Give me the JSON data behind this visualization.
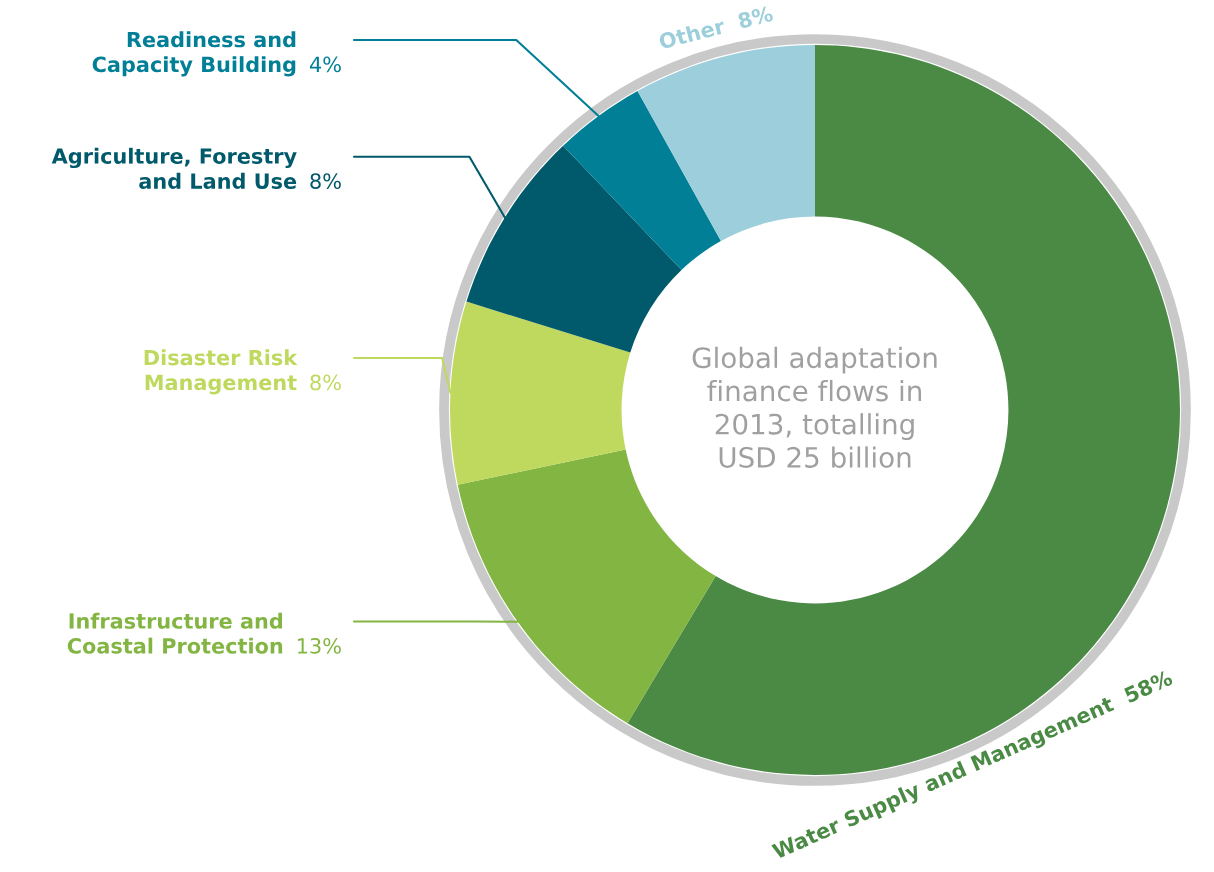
{
  "chart_data": {
    "type": "donut",
    "title": "Global adaptation\nfinance flows in\n2013, totalling\nUSD 25 billion",
    "categories": [
      "Water Supply and Management",
      "Infrastructure and\nCoastal Protection",
      "Disaster Risk\nManagement",
      "Agriculture, Forestry\nand Land Use",
      "Readiness and\nCapacity Building",
      "Other"
    ],
    "values": [
      58,
      13,
      8,
      8,
      4,
      8
    ],
    "value_labels": [
      "58%",
      "13%",
      "8%",
      "8%",
      "4%",
      "8%"
    ],
    "colors": [
      "#4a8a45",
      "#82b541",
      "#bfd95e",
      "#015a6b",
      "#007f96",
      "#9ccfdb"
    ],
    "legend": false
  }
}
